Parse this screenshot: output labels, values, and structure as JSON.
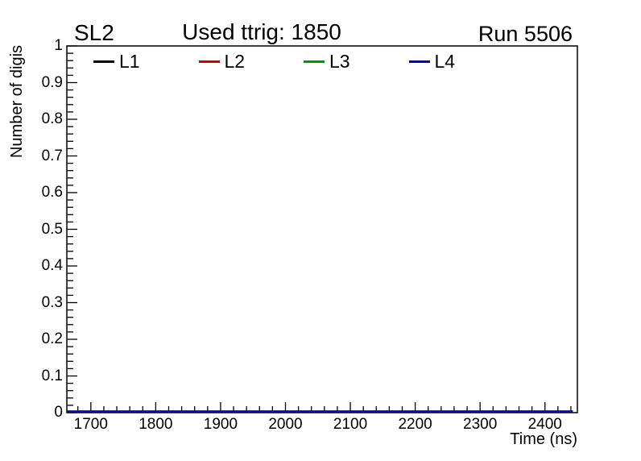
{
  "header": {
    "left_label": "SL2",
    "right_label": "Run 5506"
  },
  "colors": {
    "background": "#ffffff",
    "frame": "#000000",
    "text": "#000000"
  },
  "chart_data": {
    "type": "line",
    "title": "Used ttrig: 1850",
    "xlabel": "Time (ns)",
    "ylabel": "Number of digis",
    "xlim": [
      1663,
      2450
    ],
    "ylim": [
      0,
      1
    ],
    "grid": false,
    "legend_position": "top-inside-horizontal",
    "x_ticks": [
      {
        "value": 1700,
        "label": "1700"
      },
      {
        "value": 1800,
        "label": "1800"
      },
      {
        "value": 1900,
        "label": "1900"
      },
      {
        "value": 2000,
        "label": "2000"
      },
      {
        "value": 2100,
        "label": "2100"
      },
      {
        "value": 2200,
        "label": "2200"
      },
      {
        "value": 2300,
        "label": "2300"
      },
      {
        "value": 2400,
        "label": "2400"
      }
    ],
    "x_minor_step": 20,
    "y_ticks": [
      {
        "value": 0,
        "label": "0"
      },
      {
        "value": 0.1,
        "label": "0.1"
      },
      {
        "value": 0.2,
        "label": "0.2"
      },
      {
        "value": 0.3,
        "label": "0.3"
      },
      {
        "value": 0.4,
        "label": "0.4"
      },
      {
        "value": 0.5,
        "label": "0.5"
      },
      {
        "value": 0.6,
        "label": "0.6"
      },
      {
        "value": 0.7,
        "label": "0.7"
      },
      {
        "value": 0.8,
        "label": "0.8"
      },
      {
        "value": 0.9,
        "label": "0.9"
      },
      {
        "value": 1,
        "label": "1"
      }
    ],
    "y_minor_step": 0.02,
    "series": [
      {
        "name": "L1",
        "color": "#000000",
        "x": [
          1663,
          2443
        ],
        "y": [
          0,
          0
        ]
      },
      {
        "name": "L2",
        "color": "#cc0000",
        "x": [
          1663,
          2443
        ],
        "y": [
          0,
          0
        ]
      },
      {
        "name": "L3",
        "color": "#009900",
        "x": [
          1663,
          2443
        ],
        "y": [
          0,
          0
        ]
      },
      {
        "name": "L4",
        "color": "#0000cc",
        "x": [
          1663,
          2443
        ],
        "y": [
          0,
          0
        ]
      }
    ]
  }
}
